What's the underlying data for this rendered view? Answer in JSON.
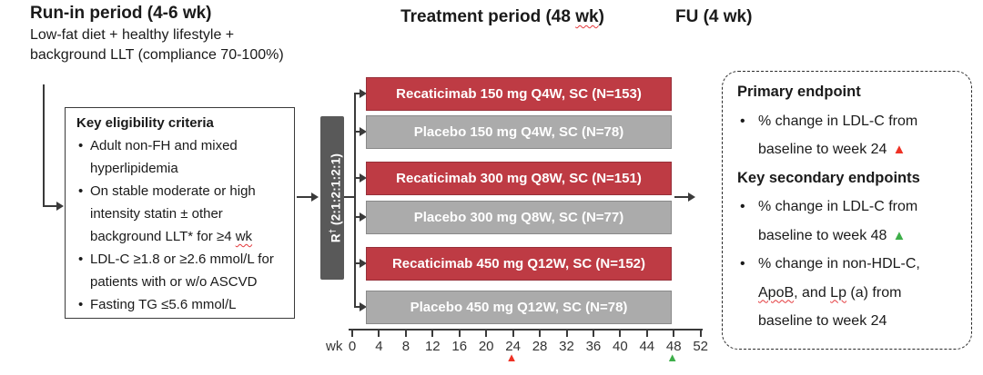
{
  "colors": {
    "arm_active": "#be3b44",
    "arm_placebo": "#ababab",
    "randomization_box": "#595959",
    "marker_red": "#ee3124",
    "marker_green": "#3dae49",
    "squiggle": "#e4393c"
  },
  "glyphs": {
    "bullet": "•",
    "marker": "▲"
  },
  "header": {
    "runin_title": "Run-in period (4-6 wk)",
    "runin_sub1": "Low-fat diet + healthy lifestyle +",
    "runin_sub2": "background LLT (compliance 70-100%)",
    "treatment_title_pre": "Treatment period (48 ",
    "treatment_title_wavy": "wk",
    "treatment_title_post": ")",
    "fu_title": "FU (4 wk)"
  },
  "eligibility": {
    "title": "Key eligibility criteria",
    "b1_l1": "Adult non-FH and mixed",
    "b1_l2": "hyperlipidemia",
    "b2_l1": "On stable moderate or high",
    "b2_l2": "intensity statin ± other",
    "b2_l3_pre": "background LLT* for ≥4 ",
    "b2_l3_wavy": "wk",
    "b3_l1": "LDL-C ≥1.8 or ≥2.6 mmol/L for",
    "b3_l2": "patients with or w/o ASCVD",
    "b4_l1": "Fasting TG ≤5.6 mmol/L"
  },
  "randomization": {
    "label": "R",
    "sup": "†",
    "ratio": "(2:1:2:1:2:1)"
  },
  "arms": [
    {
      "label": "Recaticimab 150 mg Q4W, SC (N=153)",
      "type": "active"
    },
    {
      "label": "Placebo 150 mg Q4W, SC (N=78)",
      "type": "placebo"
    },
    {
      "label": "Recaticimab 300 mg Q8W, SC (N=151)",
      "type": "active"
    },
    {
      "label": "Placebo 300 mg Q8W, SC (N=77)",
      "type": "placebo"
    },
    {
      "label": "Recaticimab 450 mg Q12W, SC (N=152)",
      "type": "active"
    },
    {
      "label": "Placebo 450 mg Q12W, SC (N=78)",
      "type": "placebo"
    }
  ],
  "axis": {
    "unit": "wk",
    "weeks": [
      "0",
      "4",
      "8",
      "12",
      "16",
      "20",
      "24",
      "28",
      "32",
      "36",
      "40",
      "44",
      "48",
      "52"
    ],
    "red_marker_week": "24",
    "green_marker_week": "48"
  },
  "endpoints": {
    "primary_title": "Primary endpoint",
    "p1_l1": "% change in LDL-C from",
    "p1_l2": "baseline to week 24",
    "secondary_title": "Key secondary endpoints",
    "s1_l1": "% change in LDL-C from",
    "s1_l2": "baseline to week 48",
    "s2_l1": "% change in non-HDL-C,",
    "s2_l2_w1": "ApoB",
    "s2_l2_mid": ", and ",
    "s2_l2_w2": "Lp",
    "s2_l2_end": " (a) from",
    "s2_l3": "baseline to week 24"
  }
}
